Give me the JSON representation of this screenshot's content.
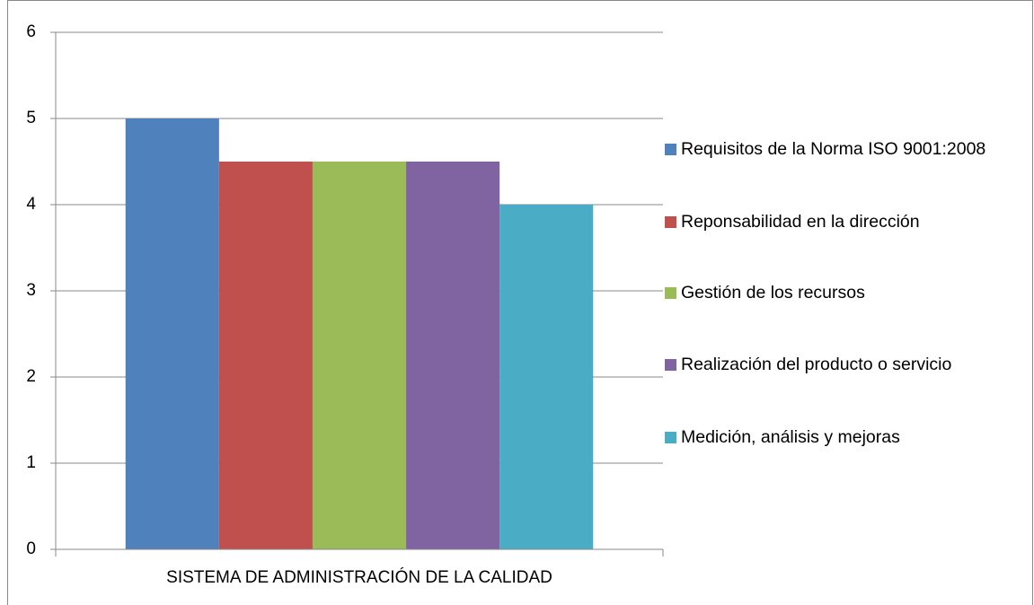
{
  "chart_data": {
    "type": "bar",
    "categories": [
      "SISTEMA DE ADMINISTRACIÓN DE LA CALIDAD"
    ],
    "series": [
      {
        "name": "Requisitos de la Norma ISO 9001:2008",
        "color": "#4f81bd",
        "values": [
          5
        ]
      },
      {
        "name": "Reponsabilidad en la dirección",
        "color": "#c0504d",
        "values": [
          4.5
        ]
      },
      {
        "name": "Gestión de los recursos",
        "color": "#9bbb59",
        "values": [
          4.5
        ]
      },
      {
        "name": "Realización del producto o servicio",
        "color": "#8064a2",
        "values": [
          4.5
        ]
      },
      {
        "name": "Medición, análisis y mejoras",
        "color": "#4bacc6",
        "values": [
          4
        ]
      }
    ],
    "ylim": [
      0,
      6
    ],
    "yticks": [
      0,
      1,
      2,
      3,
      4,
      5,
      6
    ],
    "grid": true,
    "legend": "right"
  }
}
